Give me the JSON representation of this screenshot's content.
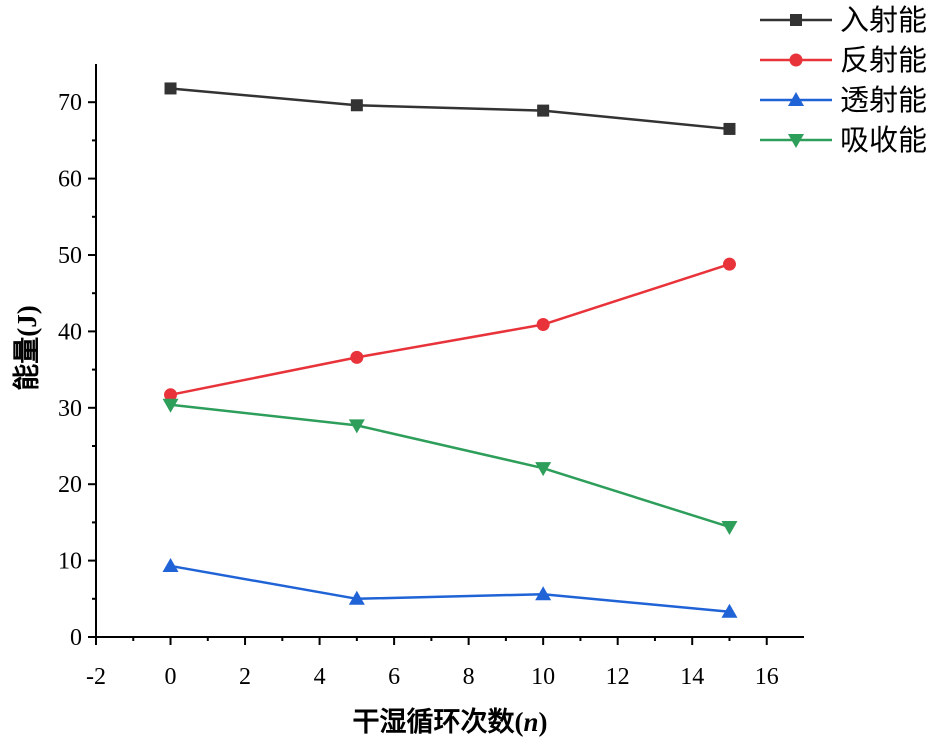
{
  "chart_data": {
    "type": "line",
    "xlabel": "干湿循环次数(n)",
    "ylabel": "能量(J)",
    "xlim": [
      -2,
      17
    ],
    "ylim": [
      0,
      75
    ],
    "xticks": [
      -2,
      0,
      2,
      4,
      6,
      8,
      10,
      12,
      14,
      16
    ],
    "yticks": [
      0,
      10,
      20,
      30,
      40,
      50,
      60,
      70
    ],
    "grid": false,
    "legend": "top-right",
    "x": [
      0,
      5,
      10,
      15
    ],
    "series": [
      {
        "name": "入射能",
        "color": "#333333",
        "marker": "square",
        "values": [
          71.8,
          69.6,
          68.9,
          66.5
        ]
      },
      {
        "name": "反射能",
        "color": "#E8333A",
        "marker": "circle",
        "values": [
          31.7,
          36.6,
          40.9,
          48.8
        ]
      },
      {
        "name": "透射能",
        "color": "#1F63D6",
        "marker": "triangle-up",
        "values": [
          9.3,
          5.0,
          5.6,
          3.3
        ]
      },
      {
        "name": "吸收能",
        "color": "#2E9E5B",
        "marker": "triangle-down",
        "values": [
          30.4,
          27.7,
          22.1,
          14.4
        ]
      }
    ]
  }
}
